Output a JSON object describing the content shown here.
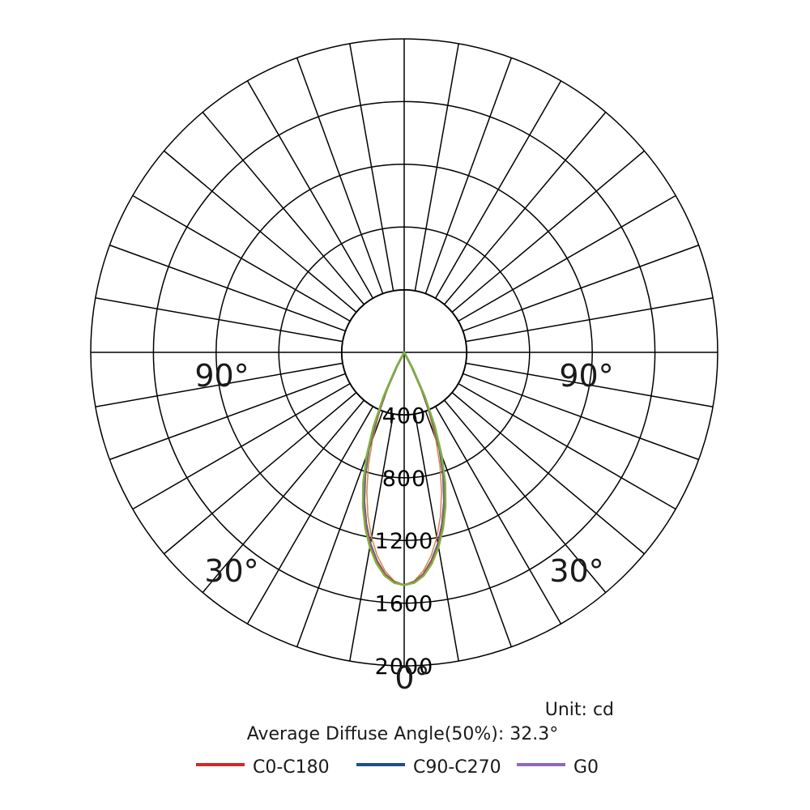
{
  "chart_data": {
    "type": "polar",
    "unit_label": "Unit: cd",
    "diffuse_angle_label": "Average Diffuse Angle(50%): 32.3°",
    "rings": [
      400,
      800,
      1200,
      1600,
      2000
    ],
    "rmax": 2000,
    "angle_step_deg": 10,
    "angle_labels": [
      {
        "text": "0°",
        "angle": 0,
        "side": "center"
      },
      {
        "text": "30°",
        "angle": 30,
        "side": "left"
      },
      {
        "text": "30°",
        "angle": 30,
        "side": "right"
      },
      {
        "text": "90°",
        "angle": 90,
        "side": "left"
      },
      {
        "text": "90°",
        "angle": 90,
        "side": "right"
      }
    ],
    "legend": [
      {
        "name": "C0-C180",
        "color": "#d62728"
      },
      {
        "name": "C90-C270",
        "color": "#1f4e8c"
      },
      {
        "name": "G0",
        "color": "#9467bd"
      }
    ],
    "series": [
      {
        "name": "C0-C180",
        "color": "#d62728",
        "angles": [
          0,
          2.5,
          5,
          7.5,
          10,
          12.5,
          15,
          17.5,
          20,
          22.5,
          25,
          27.5,
          30
        ],
        "values": [
          1485,
          1470,
          1425,
          1350,
          1255,
          1140,
          1010,
          860,
          690,
          500,
          300,
          120,
          0
        ]
      },
      {
        "name": "C90-C270",
        "color": "#1f4e8c",
        "angles": [
          0,
          2.5,
          5,
          7.5,
          10,
          12.5,
          15,
          17.5,
          20,
          22.5,
          25,
          27.5,
          30
        ],
        "values": [
          1485,
          1468,
          1420,
          1340,
          1240,
          1120,
          985,
          830,
          660,
          470,
          270,
          100,
          0
        ]
      },
      {
        "name": "G0",
        "color": "#9467bd",
        "angles": [
          0,
          2.5,
          5,
          7.5,
          10,
          12.5,
          15,
          17.5,
          20,
          22.5,
          25,
          27.5,
          30
        ],
        "values": [
          1485,
          1470,
          1422,
          1345,
          1248,
          1130,
          995,
          845,
          675,
          485,
          285,
          110,
          0
        ]
      },
      {
        "name": "",
        "color": "#d08a3c",
        "angles": [
          0,
          2.5,
          5,
          7.5,
          10,
          12.5,
          15,
          17.5,
          20,
          22.5,
          25,
          27.5,
          30
        ],
        "values": [
          1485,
          1460,
          1400,
          1310,
          1200,
          1070,
          920,
          760,
          590,
          410,
          230,
          80,
          0
        ]
      },
      {
        "name": "",
        "color": "#7cb342",
        "angles": [
          0,
          2.5,
          5,
          7.5,
          10,
          12.5,
          15,
          17.5,
          20,
          22.5,
          25,
          27.5,
          30
        ],
        "values": [
          1485,
          1472,
          1430,
          1358,
          1262,
          1148,
          1018,
          870,
          700,
          510,
          310,
          125,
          0
        ]
      }
    ]
  }
}
